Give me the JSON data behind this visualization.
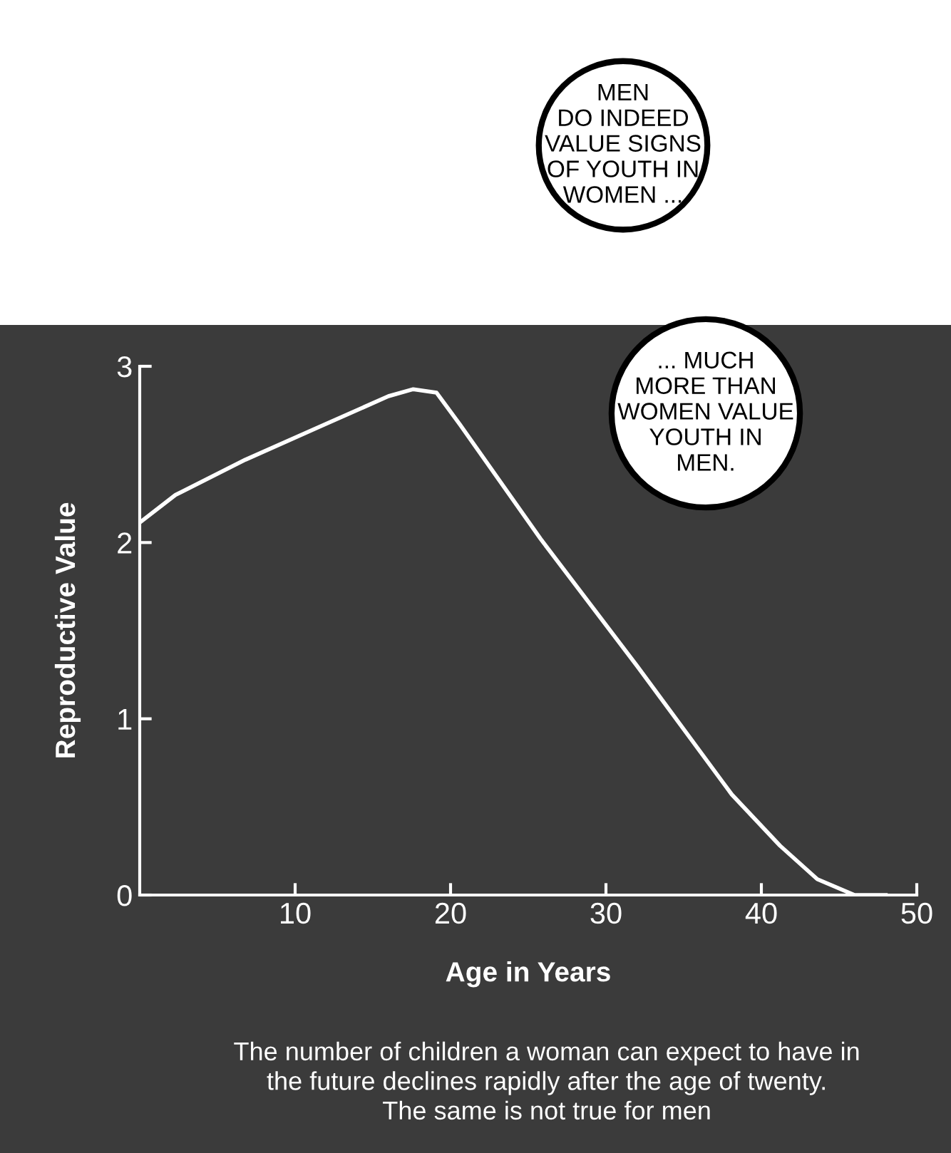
{
  "chart_data": {
    "type": "line",
    "xlabel": "Age in Years",
    "ylabel": "Reproductive Value",
    "annotations": [
      "MEN\nDO INDEED\nVALUE SIGNS\nOF YOUTH IN\nWOMEN ...",
      "... MUCH\nMORE THAN\nWOMEN VALUE\nYOUTH IN\nMEN.",
      "The number of children a woman can expect to have in\nthe future declines rapidly after the age of twenty.\nThe same is not true for men"
    ],
    "series": [
      {
        "color": "#ffffff",
        "x": [
          0.1,
          2.3,
          6.8,
          11.4,
          16,
          17.6,
          19.1,
          20.6,
          25.8,
          32,
          38.1,
          41.2,
          43.6,
          46,
          48
        ],
        "values": [
          2.12,
          2.27,
          2.47,
          2.65,
          2.83,
          2.87,
          2.85,
          2.67,
          2.02,
          1.3,
          0.57,
          0.28,
          0.09,
          0,
          0
        ]
      }
    ],
    "xlim": [
      0,
      50
    ],
    "xticks": [
      10,
      20,
      30,
      40,
      50
    ],
    "ylim": [
      0,
      3
    ],
    "yticks": [
      0,
      1,
      2,
      3
    ],
    "grid": false,
    "marker": "none",
    "line_style": "solid",
    "legend": false
  }
}
